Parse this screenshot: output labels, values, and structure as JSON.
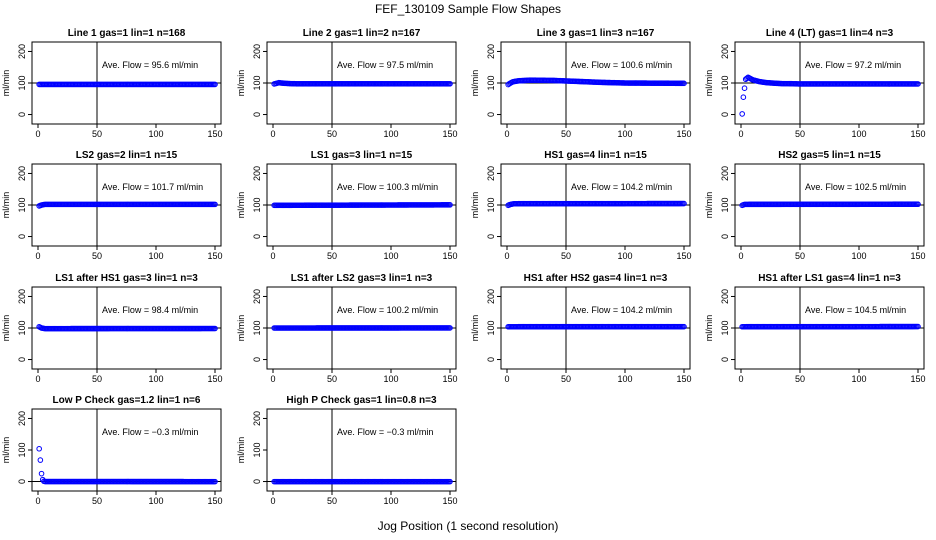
{
  "figure": {
    "title": "FEF_130109  Sample Flow Shapes",
    "xlabel": "Jog Position (1 second resolution)"
  },
  "chart_data": [
    {
      "type": "scatter",
      "title": "Line 1 gas=1 lin=1 n=168",
      "ylabel": "ml/min",
      "xlim": [
        0,
        150
      ],
      "ylim": [
        -30,
        230
      ],
      "xticks": [
        0,
        50,
        100,
        150
      ],
      "yticks": [
        0,
        100,
        200
      ],
      "vline": 50,
      "hline": 100,
      "annotation": "Ave. Flow = 95.6  ml/min",
      "series": [
        {
          "name": "",
          "x": [
            1,
            150
          ],
          "y": [
            95.6,
            95.6
          ]
        }
      ],
      "marker_color": "#0000ff"
    },
    {
      "type": "scatter",
      "title": "Line 2 gas=1 lin=2 n=167",
      "ylabel": "ml/min",
      "xlim": [
        0,
        150
      ],
      "ylim": [
        -30,
        230
      ],
      "xticks": [
        0,
        50,
        100,
        150
      ],
      "yticks": [
        0,
        100,
        200
      ],
      "vline": 50,
      "hline": 100,
      "annotation": "Ave. Flow = 97.5  ml/min",
      "series": [
        {
          "name": "",
          "x": [
            1,
            3,
            5,
            7,
            10,
            15,
            20,
            150
          ],
          "y": [
            97,
            99,
            101,
            100,
            99,
            98,
            97.5,
            97.5
          ]
        }
      ],
      "marker_color": "#0000ff"
    },
    {
      "type": "scatter",
      "title": "Line 3 gas=1 lin=3 n=167",
      "ylabel": "ml/min",
      "xlim": [
        0,
        150
      ],
      "ylim": [
        -30,
        230
      ],
      "xticks": [
        0,
        50,
        100,
        150
      ],
      "yticks": [
        0,
        100,
        200
      ],
      "vline": 50,
      "hline": 100,
      "annotation": "Ave. Flow = 100.6  ml/min",
      "series": [
        {
          "name": "",
          "x": [
            1,
            3,
            5,
            10,
            20,
            40,
            60,
            80,
            100,
            150
          ],
          "y": [
            95,
            100,
            104,
            107,
            109,
            108,
            105,
            102,
            100,
            99
          ]
        }
      ],
      "marker_color": "#0000ff"
    },
    {
      "type": "scatter",
      "title": "Line 4 (LT) gas=1 lin=4 n=3",
      "ylabel": "ml/min",
      "xlim": [
        0,
        150
      ],
      "ylim": [
        -30,
        230
      ],
      "xticks": [
        0,
        50,
        100,
        150
      ],
      "yticks": [
        0,
        100,
        200
      ],
      "vline": 50,
      "hline": 100,
      "annotation": "Ave. Flow = 97.2  ml/min",
      "series": [
        {
          "name": "",
          "x": [
            1,
            2,
            4,
            6,
            8,
            10,
            12,
            15,
            18,
            22,
            26,
            30,
            35,
            40,
            50,
            150
          ],
          "y": [
            2,
            55,
            112,
            118,
            114,
            110,
            108,
            105,
            103,
            101,
            100,
            99,
            98,
            98,
            97,
            97
          ]
        }
      ],
      "marker_color": "#0000ff"
    },
    {
      "type": "scatter",
      "title": "LS2 gas=2 lin=1 n=15",
      "ylabel": "ml/min",
      "xlim": [
        0,
        150
      ],
      "ylim": [
        -30,
        230
      ],
      "xticks": [
        0,
        50,
        100,
        150
      ],
      "yticks": [
        0,
        100,
        200
      ],
      "vline": 50,
      "hline": 100,
      "annotation": "Ave. Flow = 101.7  ml/min",
      "series": [
        {
          "name": "",
          "x": [
            1,
            3,
            6,
            150
          ],
          "y": [
            97,
            100,
            102,
            102
          ]
        }
      ],
      "marker_color": "#0000ff"
    },
    {
      "type": "scatter",
      "title": "LS1 gas=3 lin=1 n=15",
      "ylabel": "ml/min",
      "xlim": [
        0,
        150
      ],
      "ylim": [
        -30,
        230
      ],
      "xticks": [
        0,
        50,
        100,
        150
      ],
      "yticks": [
        0,
        100,
        200
      ],
      "vline": 50,
      "hline": 100,
      "annotation": "Ave. Flow = 100.3  ml/min",
      "series": [
        {
          "name": "",
          "x": [
            1,
            150
          ],
          "y": [
            99,
            100.5
          ]
        }
      ],
      "marker_color": "#0000ff"
    },
    {
      "type": "scatter",
      "title": "HS1 gas=4 lin=1 n=15",
      "ylabel": "ml/min",
      "xlim": [
        0,
        150
      ],
      "ylim": [
        -30,
        230
      ],
      "xticks": [
        0,
        50,
        100,
        150
      ],
      "yticks": [
        0,
        100,
        200
      ],
      "vline": 50,
      "hline": 100,
      "annotation": "Ave. Flow = 104.2  ml/min",
      "series": [
        {
          "name": "",
          "x": [
            1,
            3,
            6,
            150
          ],
          "y": [
            99,
            102,
            104,
            104.5
          ]
        }
      ],
      "marker_color": "#0000ff"
    },
    {
      "type": "scatter",
      "title": "HS2 gas=5 lin=1 n=15",
      "ylabel": "ml/min",
      "xlim": [
        0,
        150
      ],
      "ylim": [
        -30,
        230
      ],
      "xticks": [
        0,
        50,
        100,
        150
      ],
      "yticks": [
        0,
        100,
        200
      ],
      "vline": 50,
      "hline": 100,
      "annotation": "Ave. Flow = 102.5  ml/min",
      "series": [
        {
          "name": "",
          "x": [
            1,
            3,
            150
          ],
          "y": [
            99,
            102,
            102.5
          ]
        }
      ],
      "marker_color": "#0000ff"
    },
    {
      "type": "scatter",
      "title": "LS1 after HS1 gas=3 lin=1 n=3",
      "ylabel": "ml/min",
      "xlim": [
        0,
        150
      ],
      "ylim": [
        -30,
        230
      ],
      "xticks": [
        0,
        50,
        100,
        150
      ],
      "yticks": [
        0,
        100,
        200
      ],
      "vline": 50,
      "hline": 100,
      "annotation": "Ave. Flow = 98.4  ml/min",
      "series": [
        {
          "name": "",
          "x": [
            1,
            3,
            6,
            10,
            150
          ],
          "y": [
            104,
            100,
            98,
            98,
            98.4
          ]
        }
      ],
      "marker_color": "#0000ff"
    },
    {
      "type": "scatter",
      "title": "LS1 after LS2 gas=3 lin=1 n=3",
      "ylabel": "ml/min",
      "xlim": [
        0,
        150
      ],
      "ylim": [
        -30,
        230
      ],
      "xticks": [
        0,
        50,
        100,
        150
      ],
      "yticks": [
        0,
        100,
        200
      ],
      "vline": 50,
      "hline": 100,
      "annotation": "Ave. Flow = 100.2  ml/min",
      "series": [
        {
          "name": "",
          "x": [
            1,
            150
          ],
          "y": [
            100,
            100.2
          ]
        }
      ],
      "marker_color": "#0000ff"
    },
    {
      "type": "scatter",
      "title": "HS1 after HS2 gas=4 lin=1 n=3",
      "ylabel": "ml/min",
      "xlim": [
        0,
        150
      ],
      "ylim": [
        -30,
        230
      ],
      "xticks": [
        0,
        50,
        100,
        150
      ],
      "yticks": [
        0,
        100,
        200
      ],
      "vline": 50,
      "hline": 100,
      "annotation": "Ave. Flow = 104.2  ml/min",
      "series": [
        {
          "name": "",
          "x": [
            1,
            150
          ],
          "y": [
            104,
            104.2
          ]
        }
      ],
      "marker_color": "#0000ff"
    },
    {
      "type": "scatter",
      "title": "HS1 after LS1 gas=4 lin=1 n=3",
      "ylabel": "ml/min",
      "xlim": [
        0,
        150
      ],
      "ylim": [
        -30,
        230
      ],
      "xticks": [
        0,
        50,
        100,
        150
      ],
      "yticks": [
        0,
        100,
        200
      ],
      "vline": 50,
      "hline": 100,
      "annotation": "Ave. Flow = 104.5  ml/min",
      "series": [
        {
          "name": "",
          "x": [
            1,
            150
          ],
          "y": [
            104,
            104.5
          ]
        }
      ],
      "marker_color": "#0000ff"
    },
    {
      "type": "scatter",
      "title": "Low P Check gas=1.2 lin=1 n=6",
      "ylabel": "ml/min",
      "xlim": [
        0,
        150
      ],
      "ylim": [
        -30,
        230
      ],
      "xticks": [
        0,
        50,
        100,
        150
      ],
      "yticks": [
        0,
        100,
        200
      ],
      "vline": 50,
      "hline": 0,
      "annotation": "Ave. Flow = −0.3  ml/min",
      "series": [
        {
          "name": "",
          "x": [
            1,
            2,
            3,
            4,
            5,
            6,
            8,
            10,
            150
          ],
          "y": [
            104,
            68,
            25,
            6,
            1,
            0,
            0,
            0,
            -0.3
          ]
        }
      ],
      "marker_color": "#0000ff"
    },
    {
      "type": "scatter",
      "title": "High P Check gas=1 lin=0.8 n=3",
      "ylabel": "ml/min",
      "xlim": [
        0,
        150
      ],
      "ylim": [
        -30,
        230
      ],
      "xticks": [
        0,
        50,
        100,
        150
      ],
      "yticks": [
        0,
        100,
        200
      ],
      "vline": 50,
      "hline": 0,
      "annotation": "Ave. Flow = −0.3  ml/min",
      "series": [
        {
          "name": "",
          "x": [
            1,
            150
          ],
          "y": [
            -0.3,
            -0.3
          ]
        }
      ],
      "marker_color": "#0000ff"
    }
  ]
}
